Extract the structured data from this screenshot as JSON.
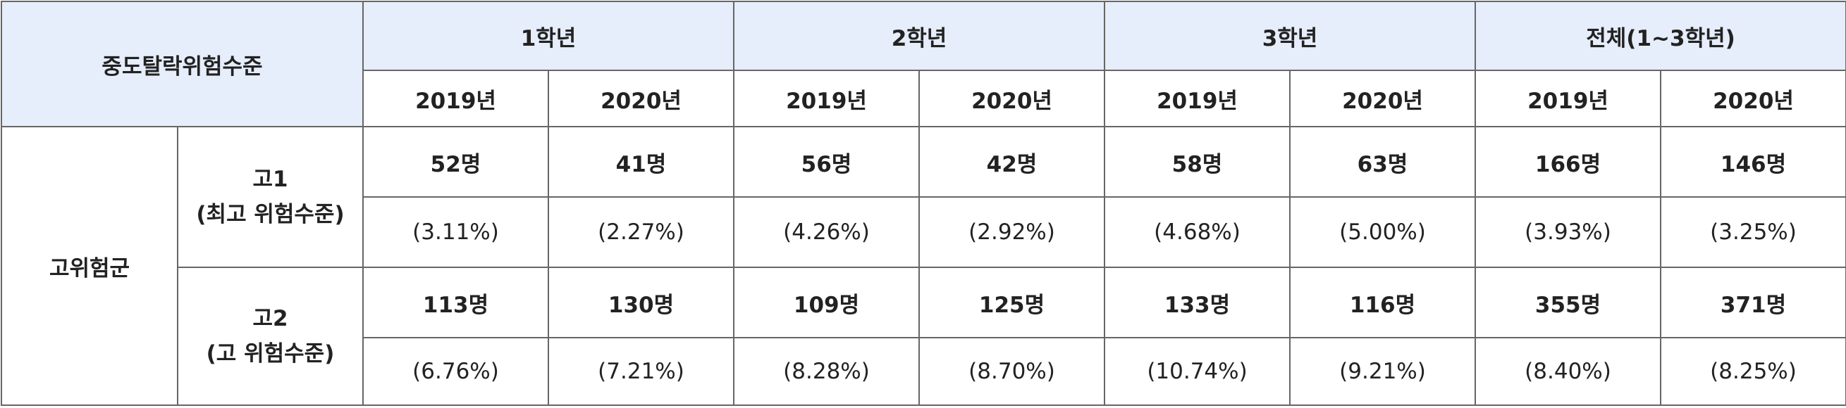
{
  "header": {
    "corner": "중도탈락위험수준",
    "grades": [
      "1학년",
      "2학년",
      "3학년",
      "전체(1~3학년)"
    ],
    "years": [
      "2019년",
      "2020년",
      "2019년",
      "2020년",
      "2019년",
      "2020년",
      "2019년",
      "2020년"
    ]
  },
  "group": "고위험군",
  "subgroups": [
    {
      "label": [
        "고1",
        "(최고 위험수준)"
      ],
      "counts": [
        "52명",
        "41명",
        "56명",
        "42명",
        "58명",
        "63명",
        "166명",
        "146명"
      ],
      "rates": [
        "(3.11%)",
        "(2.27%)",
        "(4.26%)",
        "(2.92%)",
        "(4.68%)",
        "(5.00%)",
        "(3.93%)",
        "(3.25%)"
      ]
    },
    {
      "label": [
        "고2",
        "(고 위험수준)"
      ],
      "counts": [
        "113명",
        "130명",
        "109명",
        "125명",
        "133명",
        "116명",
        "355명",
        "371명"
      ],
      "rates": [
        "(6.76%)",
        "(7.21%)",
        "(8.28%)",
        "(8.70%)",
        "(10.74%)",
        "(9.21%)",
        "(8.40%)",
        "(8.25%)"
      ]
    }
  ]
}
